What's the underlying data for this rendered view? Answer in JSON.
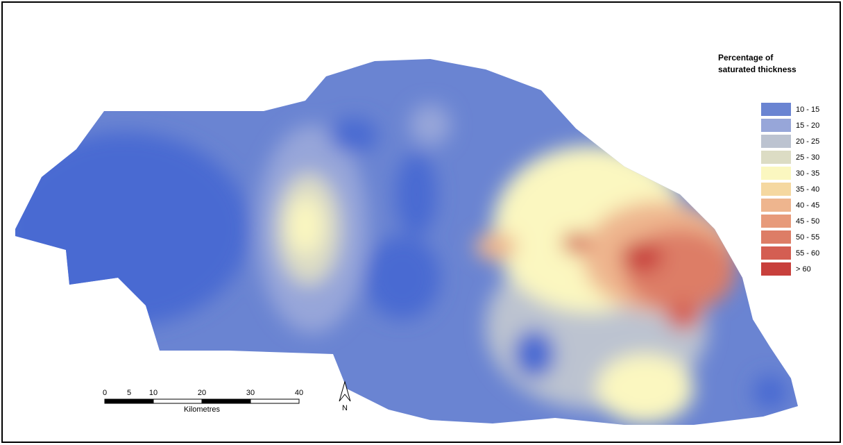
{
  "legend": {
    "title": [
      "Percentage of",
      "saturated thickness"
    ],
    "items": [
      {
        "label": "10 - 15",
        "color": "#6a84d2"
      },
      {
        "label": "15 - 20",
        "color": "#97a6d9"
      },
      {
        "label": "20 - 25",
        "color": "#bcc3d0"
      },
      {
        "label": "25 - 30",
        "color": "#dcdcc4"
      },
      {
        "label": "30 - 35",
        "color": "#fbf7c0"
      },
      {
        "label": "35 - 40",
        "color": "#f5d8a0"
      },
      {
        "label": "40 - 45",
        "color": "#eeb58e"
      },
      {
        "label": "45 - 50",
        "color": "#e79a7a"
      },
      {
        "label": "50 - 55",
        "color": "#dd7d66"
      },
      {
        "label": "55 - 60",
        "color": "#d45e52"
      },
      {
        "label": "> 60",
        "color": "#c8403c"
      }
    ]
  },
  "scale_bar": {
    "ticks": [
      0,
      5,
      10,
      20,
      30,
      40
    ],
    "unit": "Kilometres"
  },
  "north_arrow": {
    "label": "N"
  }
}
